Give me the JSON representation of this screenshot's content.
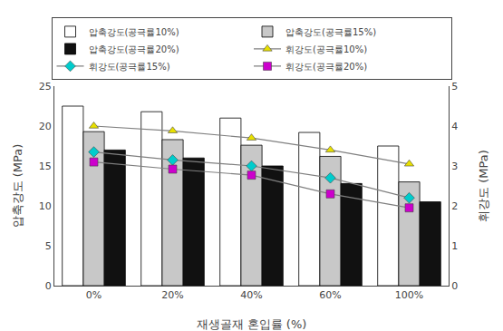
{
  "chart_data": {
    "type": "bar",
    "categories": [
      "0%",
      "20%",
      "40%",
      "60%",
      "100%"
    ],
    "xlabel": "재생골재 혼입률 (%)",
    "ylabel": "압축강도 (MPa)",
    "y2label": "휘강도 (MPa)",
    "ylim": [
      0,
      25
    ],
    "yticks": [
      0,
      5,
      10,
      15,
      20,
      25
    ],
    "y2lim": [
      0,
      5
    ],
    "y2ticks": [
      0,
      1,
      2,
      3,
      4,
      5
    ],
    "grid": false,
    "legend": "top",
    "series": [
      {
        "name": "압축강도(공극률10%)",
        "type": "bar",
        "color": "#ffffff",
        "values": [
          22.5,
          21.8,
          21.0,
          19.2,
          17.5
        ]
      },
      {
        "name": "압축강도(공극률15%)",
        "type": "bar",
        "color": "#c8c8c8",
        "values": [
          19.3,
          18.3,
          17.6,
          16.2,
          13.0
        ]
      },
      {
        "name": "압축강도(공극률20%)",
        "type": "bar",
        "color": "#111111",
        "values": [
          17.0,
          16.0,
          15.0,
          12.8,
          10.5
        ]
      },
      {
        "name": "휘강도(공극률10%)",
        "type": "line",
        "axis": "y2",
        "color": "#e8e000",
        "marker": "triangle-up",
        "line_style": "solid",
        "values": [
          4.0,
          3.88,
          3.7,
          3.4,
          3.05
        ]
      },
      {
        "name": "휘강도(공극률15%)",
        "type": "line",
        "axis": "y2",
        "color": "#00cccc",
        "marker": "diamond",
        "line_style": "solid",
        "values": [
          3.35,
          3.15,
          3.0,
          2.7,
          2.2
        ]
      },
      {
        "name": "휘강도(공극률20%)",
        "type": "line",
        "axis": "y2",
        "color": "#cc00cc",
        "marker": "square",
        "line_style": "solid",
        "values": [
          3.1,
          2.92,
          2.77,
          2.3,
          1.95
        ]
      }
    ]
  }
}
